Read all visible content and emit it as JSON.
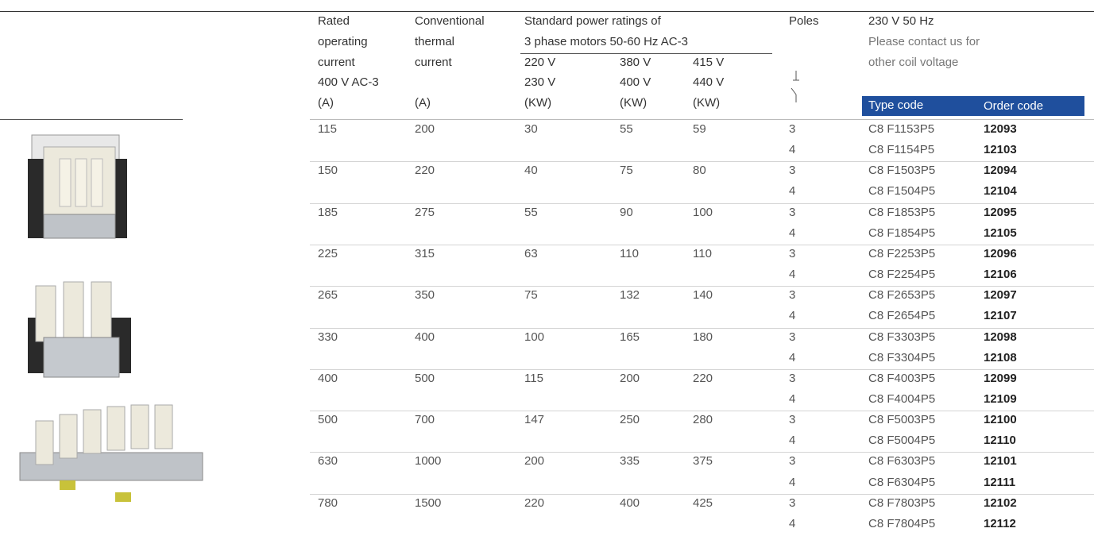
{
  "header": {
    "rated": [
      "Rated",
      "operating",
      "current",
      "400 V AC-3",
      "(A)"
    ],
    "thermal": [
      "Conventional",
      "thermal",
      "current",
      "(A)"
    ],
    "power": [
      "Standard power ratings of",
      "3 phase motors 50-60 Hz AC-3"
    ],
    "power_cols": [
      [
        "220 V",
        "230 V",
        "(KW)"
      ],
      [
        "380 V",
        "400 V",
        "(KW)"
      ],
      [
        "415 V",
        "440 V",
        "(KW)"
      ]
    ],
    "poles": "Poles",
    "coil": [
      "230 V 50 Hz",
      "Please contact us for",
      "other coil voltage"
    ],
    "type_code": "Type code",
    "order_code": "Order code"
  },
  "rows": [
    {
      "rated": 115,
      "thermal": 200,
      "power": [
        30,
        55,
        59
      ],
      "variants": [
        {
          "poles": 3,
          "type_code": "C8 F1153P5",
          "order_code": 12093
        },
        {
          "poles": 4,
          "type_code": "C8 F1154P5",
          "order_code": 12103
        }
      ]
    },
    {
      "rated": 150,
      "thermal": 220,
      "power": [
        40,
        75,
        80
      ],
      "variants": [
        {
          "poles": 3,
          "type_code": "C8 F1503P5",
          "order_code": 12094
        },
        {
          "poles": 4,
          "type_code": "C8 F1504P5",
          "order_code": 12104
        }
      ]
    },
    {
      "rated": 185,
      "thermal": 275,
      "power": [
        55,
        90,
        100
      ],
      "variants": [
        {
          "poles": 3,
          "type_code": "C8 F1853P5",
          "order_code": 12095
        },
        {
          "poles": 4,
          "type_code": "C8 F1854P5",
          "order_code": 12105
        }
      ]
    },
    {
      "rated": 225,
      "thermal": 315,
      "power": [
        63,
        110,
        110
      ],
      "variants": [
        {
          "poles": 3,
          "type_code": "C8 F2253P5",
          "order_code": 12096
        },
        {
          "poles": 4,
          "type_code": "C8 F2254P5",
          "order_code": 12106
        }
      ]
    },
    {
      "rated": 265,
      "thermal": 350,
      "power": [
        75,
        132,
        140
      ],
      "variants": [
        {
          "poles": 3,
          "type_code": "C8 F2653P5",
          "order_code": 12097
        },
        {
          "poles": 4,
          "type_code": "C8 F2654P5",
          "order_code": 12107
        }
      ]
    },
    {
      "rated": 330,
      "thermal": 400,
      "power": [
        100,
        165,
        180
      ],
      "variants": [
        {
          "poles": 3,
          "type_code": "C8 F3303P5",
          "order_code": 12098
        },
        {
          "poles": 4,
          "type_code": "C8 F3304P5",
          "order_code": 12108
        }
      ]
    },
    {
      "rated": 400,
      "thermal": 500,
      "power": [
        115,
        200,
        220
      ],
      "variants": [
        {
          "poles": 3,
          "type_code": "C8 F4003P5",
          "order_code": 12099
        },
        {
          "poles": 4,
          "type_code": "C8 F4004P5",
          "order_code": 12109
        }
      ]
    },
    {
      "rated": 500,
      "thermal": 700,
      "power": [
        147,
        250,
        280
      ],
      "variants": [
        {
          "poles": 3,
          "type_code": "C8 F5003P5",
          "order_code": 12100
        },
        {
          "poles": 4,
          "type_code": "C8 F5004P5",
          "order_code": 12110
        }
      ]
    },
    {
      "rated": 630,
      "thermal": 1000,
      "power": [
        200,
        335,
        375
      ],
      "variants": [
        {
          "poles": 3,
          "type_code": "C8 F6303P5",
          "order_code": 12101
        },
        {
          "poles": 4,
          "type_code": "C8 F6304P5",
          "order_code": 12111
        }
      ]
    },
    {
      "rated": 780,
      "thermal": 1500,
      "power": [
        220,
        400,
        425
      ],
      "variants": [
        {
          "poles": 3,
          "type_code": "C8 F7803P5",
          "order_code": 12102
        },
        {
          "poles": 4,
          "type_code": "C8 F7804P5",
          "order_code": 12112
        }
      ]
    }
  ]
}
